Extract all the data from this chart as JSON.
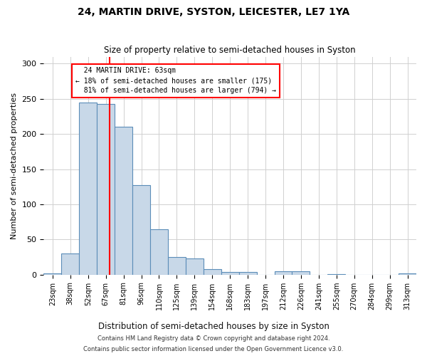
{
  "title": "24, MARTIN DRIVE, SYSTON, LEICESTER, LE7 1YA",
  "subtitle": "Size of property relative to semi-detached houses in Syston",
  "xlabel": "Distribution of semi-detached houses by size in Syston",
  "ylabel": "Number of semi-detached properties",
  "footnote1": "Contains HM Land Registry data © Crown copyright and database right 2024.",
  "footnote2": "Contains public sector information licensed under the Open Government Licence v3.0.",
  "categories": [
    "23sqm",
    "38sqm",
    "52sqm",
    "67sqm",
    "81sqm",
    "96sqm",
    "110sqm",
    "125sqm",
    "139sqm",
    "154sqm",
    "168sqm",
    "183sqm",
    "197sqm",
    "212sqm",
    "226sqm",
    "241sqm",
    "255sqm",
    "270sqm",
    "284sqm",
    "299sqm",
    "313sqm"
  ],
  "values": [
    2,
    30,
    245,
    243,
    210,
    127,
    65,
    25,
    23,
    8,
    4,
    4,
    0,
    5,
    5,
    0,
    1,
    0,
    0,
    0,
    2
  ],
  "bar_color": "#c8d8e8",
  "bar_edge_color": "#5b8db8",
  "property_label": "24 MARTIN DRIVE: 63sqm",
  "pct_smaller": 18,
  "count_smaller": 175,
  "pct_larger": 81,
  "count_larger": 794,
  "ylim": [
    0,
    310
  ],
  "background_color": "#ffffff",
  "grid_color": "#d0d0d0"
}
